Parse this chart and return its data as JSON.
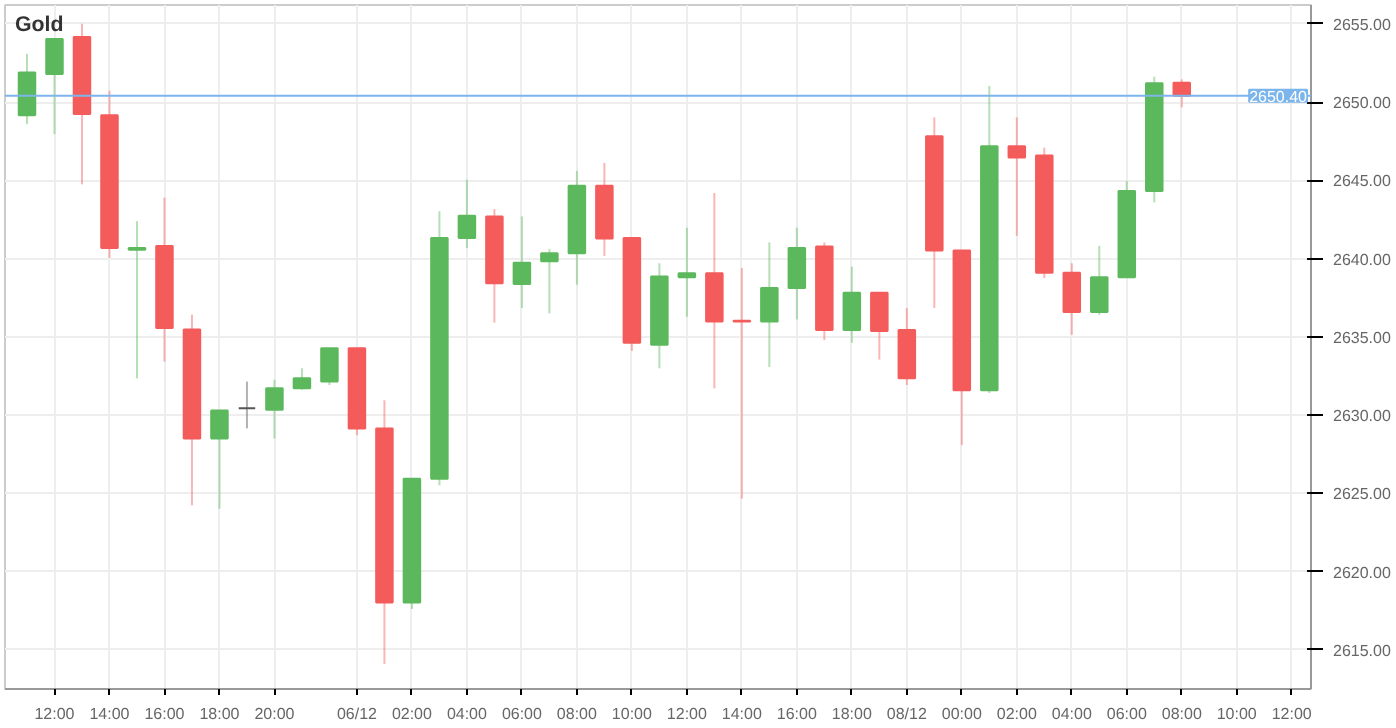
{
  "chart_data": {
    "type": "candlestick",
    "title": "Gold",
    "categories": [
      null,
      "12:00",
      null,
      "14:00",
      null,
      "16:00",
      null,
      "18:00",
      null,
      "20:00",
      null,
      null,
      "06/12",
      null,
      "02:00",
      null,
      "04:00",
      null,
      "06:00",
      null,
      "08:00",
      null,
      "10:00",
      null,
      "12:00",
      null,
      "14:00",
      null,
      "16:00",
      null,
      "18:00",
      null,
      "08/12",
      null,
      "00:00",
      null,
      "02:00",
      null,
      "04:00",
      null,
      "06:00",
      null,
      "08:00",
      null,
      "10:00",
      null,
      "12:00"
    ],
    "ohlc": [
      [
        2649.15,
        2653.08,
        2648.59,
        2651.88
      ],
      [
        2651.79,
        2654.02,
        2647.95,
        2654.02
      ],
      [
        2654.15,
        2655.0,
        2644.74,
        2649.23
      ],
      [
        2649.15,
        2650.73,
        2640.04,
        2640.68
      ],
      [
        2640.56,
        2642.39,
        2632.35,
        2640.68
      ],
      [
        2640.81,
        2643.89,
        2633.42,
        2635.56
      ],
      [
        2635.47,
        2636.41,
        2624.23,
        2628.5
      ],
      [
        2628.5,
        2630.3,
        2624.02,
        2630.3
      ],
      [
        2630.43,
        2632.14,
        2629.15,
        2630.43
      ],
      [
        2630.34,
        2632.26,
        2628.5,
        2631.71
      ],
      [
        2631.71,
        2632.99,
        2631.62,
        2632.35
      ],
      [
        2632.14,
        2634.27,
        2631.92,
        2634.27
      ],
      [
        2634.27,
        2634.27,
        2628.72,
        2629.15
      ],
      [
        2629.15,
        2630.94,
        2614.1,
        2618.03
      ],
      [
        2618.03,
        2625.94,
        2617.61,
        2625.94
      ],
      [
        2625.94,
        2643.03,
        2625.51,
        2641.32
      ],
      [
        2641.32,
        2645.04,
        2640.68,
        2642.74
      ],
      [
        2642.69,
        2643.16,
        2635.9,
        2638.42
      ],
      [
        2638.38,
        2642.69,
        2636.84,
        2639.74
      ],
      [
        2639.83,
        2640.6,
        2636.5,
        2640.34
      ],
      [
        2640.34,
        2645.6,
        2638.33,
        2644.66
      ],
      [
        2644.66,
        2646.11,
        2640.17,
        2641.28
      ],
      [
        2641.32,
        2641.32,
        2634.1,
        2634.62
      ],
      [
        2634.49,
        2639.7,
        2632.99,
        2638.85
      ],
      [
        2638.8,
        2641.97,
        2636.28,
        2639.06
      ],
      [
        2639.06,
        2644.19,
        2631.71,
        2635.98
      ],
      [
        2636.03,
        2639.4,
        2624.66,
        2635.98
      ],
      [
        2635.98,
        2641.03,
        2633.08,
        2638.12
      ],
      [
        2638.12,
        2641.97,
        2636.11,
        2640.68
      ],
      [
        2640.77,
        2641.03,
        2634.79,
        2635.43
      ],
      [
        2635.43,
        2639.49,
        2634.62,
        2637.82
      ],
      [
        2637.82,
        2637.82,
        2633.55,
        2635.38
      ],
      [
        2635.43,
        2636.84,
        2631.92,
        2632.35
      ],
      [
        2647.82,
        2649.02,
        2636.84,
        2640.51
      ],
      [
        2640.51,
        2640.51,
        2628.08,
        2631.58
      ],
      [
        2631.58,
        2651.03,
        2631.41,
        2647.18
      ],
      [
        2647.18,
        2649.02,
        2641.45,
        2646.45
      ],
      [
        2646.58,
        2647.09,
        2638.76,
        2639.1
      ],
      [
        2639.1,
        2639.7,
        2635.13,
        2636.58
      ],
      [
        2636.58,
        2640.81,
        2636.41,
        2638.8
      ],
      [
        2638.8,
        2644.96,
        2638.8,
        2644.32
      ],
      [
        2644.32,
        2651.62,
        2643.59,
        2651.2
      ],
      [
        2651.24,
        2651.45,
        2649.66,
        2650.4
      ],
      null,
      null,
      null,
      null
    ],
    "colors": [
      "#5cb85c",
      "#5cb85c",
      "#f45b5b",
      "#f45b5b",
      "#5cb85c",
      "#f45b5b",
      "#f45b5b",
      "#5cb85c",
      "#555555",
      "#5cb85c",
      "#5cb85c",
      "#5cb85c",
      "#f45b5b",
      "#f45b5b",
      "#5cb85c",
      "#5cb85c",
      "#5cb85c",
      "#f45b5b",
      "#5cb85c",
      "#5cb85c",
      "#5cb85c",
      "#f45b5b",
      "#f45b5b",
      "#5cb85c",
      "#5cb85c",
      "#f45b5b",
      "#f45b5b",
      "#5cb85c",
      "#5cb85c",
      "#f45b5b",
      "#5cb85c",
      "#f45b5b",
      "#f45b5b",
      "#f45b5b",
      "#f45b5b",
      "#5cb85c",
      "#f45b5b",
      "#f45b5b",
      "#f45b5b",
      "#5cb85c",
      "#5cb85c",
      "#5cb85c",
      "#f45b5b",
      null,
      null,
      null,
      null
    ],
    "ylim": [
      2612.5,
      2656.2
    ],
    "yticks": [
      {
        "value": 2615,
        "label": "2615.00"
      },
      {
        "value": 2620,
        "label": "2620.00"
      },
      {
        "value": 2625,
        "label": "2625.00"
      },
      {
        "value": 2630,
        "label": "2630.00"
      },
      {
        "value": 2635,
        "label": "2635.00"
      },
      {
        "value": 2640,
        "label": "2640.00"
      },
      {
        "value": 2645,
        "label": "2645.00"
      },
      {
        "value": 2650,
        "label": "2650.00"
      },
      {
        "value": 2655,
        "label": "2655.00"
      }
    ],
    "ref_lines": [
      {
        "axis": "y",
        "value": 2650.4,
        "label": "2650.40",
        "color": "#7cb5ec"
      }
    ],
    "grid": true
  }
}
